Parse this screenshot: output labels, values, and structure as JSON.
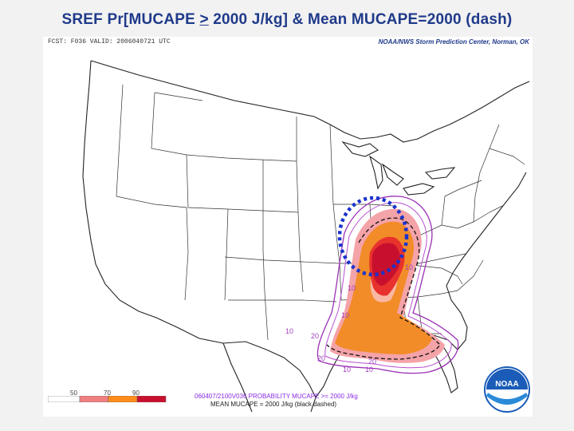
{
  "title": {
    "prefix": "SREF Pr[MUCAPE ",
    "operator": ">",
    "suffix": " 2000 J/kg] & Mean MUCAPE=2000 (dash)"
  },
  "map": {
    "header_left": "FCST: F036  VALID: 2006040721 UTC",
    "header_right": "NOAA/NWS Storm Prediction Center, Norman, OK",
    "legend": {
      "labels": [
        "50",
        "70",
        "90"
      ],
      "colors": [
        "#ffffff",
        "#f08080",
        "#ff8c1a",
        "#c8102e"
      ]
    },
    "caption_line1": "060407/2100V036 PROBABILITY MUCAPE >= 2000 J/kg",
    "caption_line2": "MEAN MUCAPE = 2000 J/kg (black dashed)",
    "contour_labels": [
      "10",
      "20",
      "10",
      "10",
      "10",
      "20",
      "20",
      "10",
      "10"
    ],
    "highlight_color": "#1a33cc",
    "logo_text": "NOAA"
  }
}
